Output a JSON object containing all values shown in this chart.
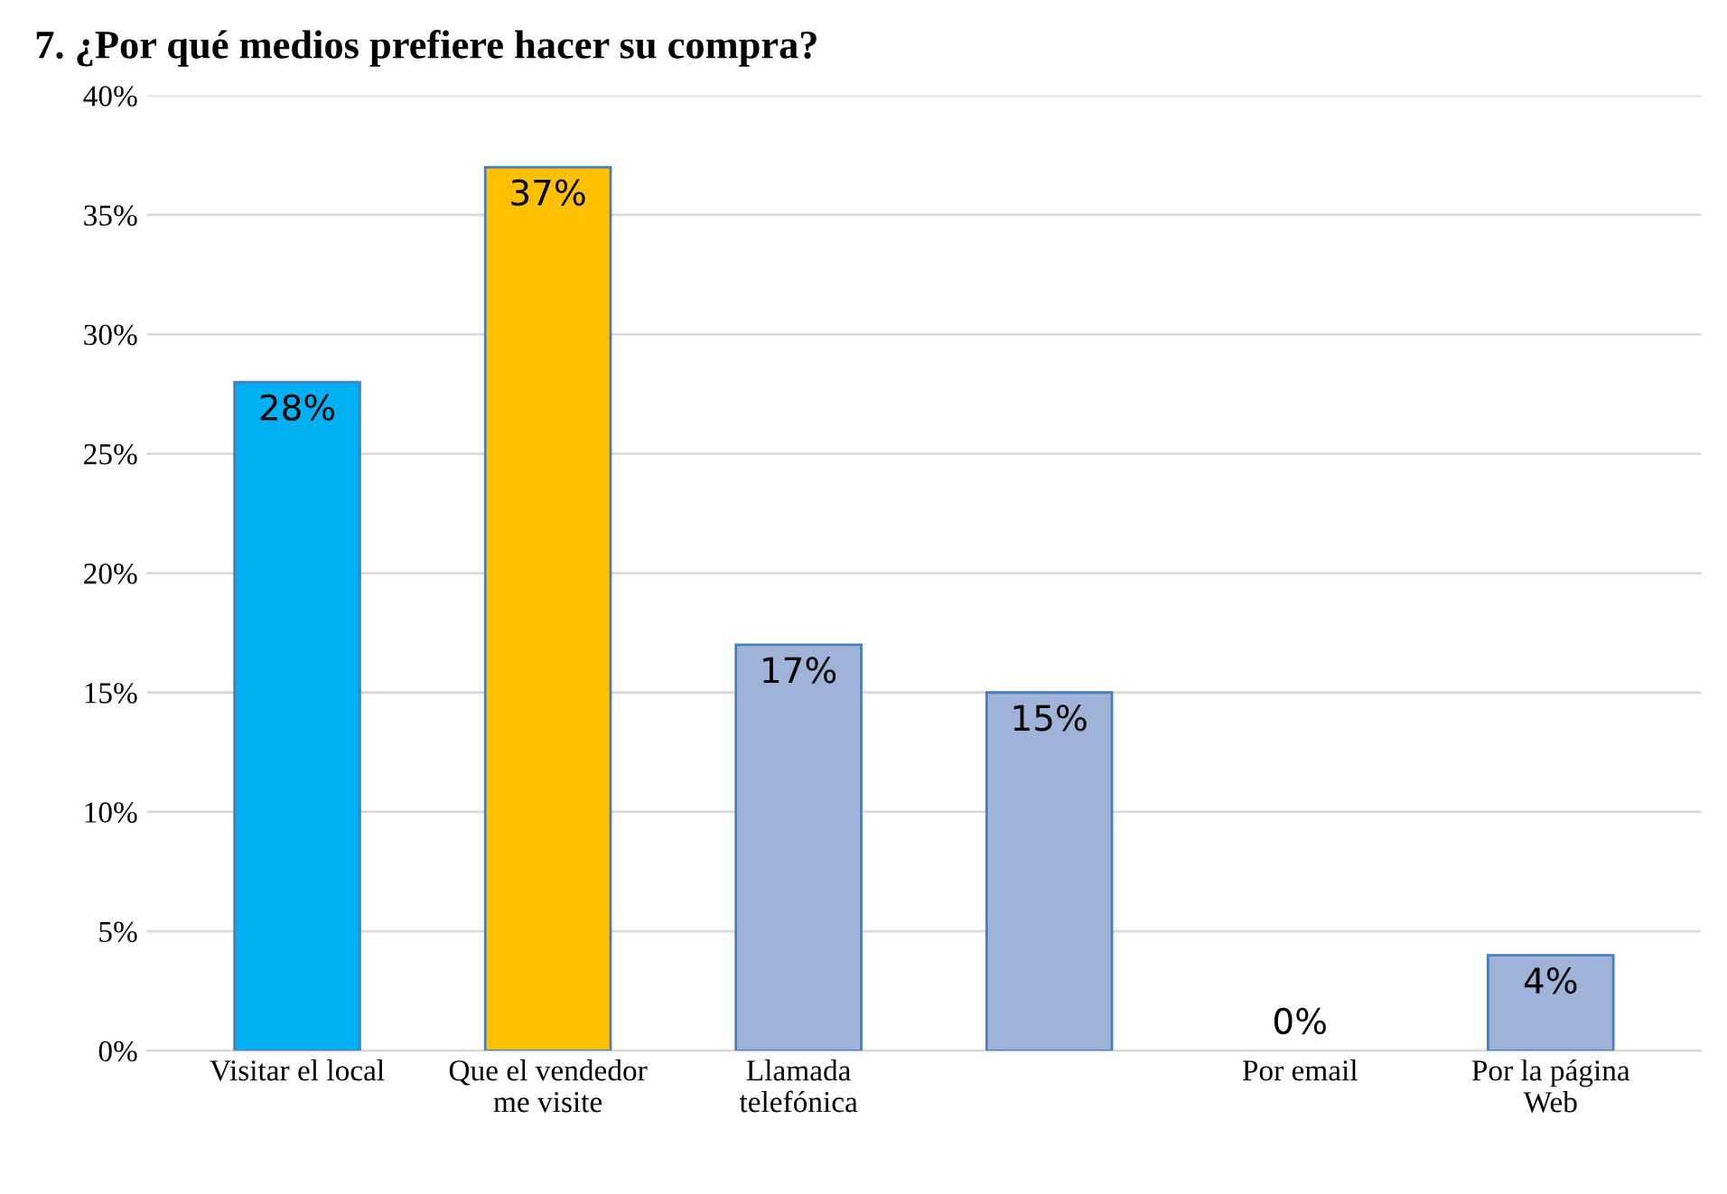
{
  "chart_data": {
    "type": "bar",
    "title": "7. ¿Por qué medios prefiere hacer su compra?",
    "categories": [
      "Visitar el local",
      "Que el vendedor\nme visite",
      "Llamada\ntelefónica",
      null,
      "Por email",
      "Por la página\nWeb"
    ],
    "values": [
      28,
      37,
      17,
      15,
      0,
      4
    ],
    "colors": [
      "#00b0f0",
      "#ffc000",
      "#9fb3d9",
      "#9fb3d9",
      "#9fb3d9",
      "#9fb3d9"
    ],
    "value_labels": [
      "28%",
      "37%",
      "17%",
      "15%",
      "0%",
      "4%"
    ],
    "ylim": [
      0,
      40
    ],
    "yticks": [
      {
        "value": 0,
        "label": "0%"
      },
      {
        "value": 5,
        "label": "5%"
      },
      {
        "value": 10,
        "label": "10%"
      },
      {
        "value": 15,
        "label": "15%"
      },
      {
        "value": 20,
        "label": "20%"
      },
      {
        "value": 25,
        "label": "25%"
      },
      {
        "value": 30,
        "label": "30%"
      },
      {
        "value": 35,
        "label": "35%"
      },
      {
        "value": 40,
        "label": "40%"
      }
    ],
    "grid": "y"
  }
}
